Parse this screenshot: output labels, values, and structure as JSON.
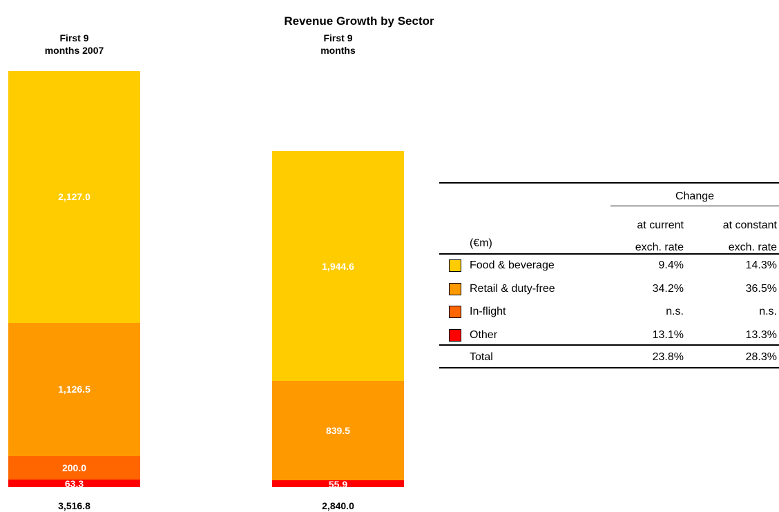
{
  "chart_data": {
    "type": "stacked-bar",
    "title": "Revenue Growth by Sector",
    "categories": [
      "First 9\nmonths 2007",
      "First 9\nmonths"
    ],
    "series": [
      {
        "name": "Food & beverage",
        "color": "#FFCC00",
        "values": [
          2127.0,
          1944.6
        ],
        "value_labels": [
          "2,127.0",
          "1,944.6"
        ]
      },
      {
        "name": "Retail & duty-free",
        "color": "#FF9900",
        "values": [
          1126.5,
          839.5
        ],
        "value_labels": [
          "1,126.5",
          "839.5"
        ]
      },
      {
        "name": "In-flight",
        "color": "#FF6600",
        "values": [
          200.0,
          null
        ],
        "value_labels": [
          "200.0",
          null
        ]
      },
      {
        "name": "Other",
        "color": "#FF0000",
        "values": [
          63.3,
          55.9
        ],
        "value_labels": [
          "63.3",
          "55.9"
        ]
      }
    ],
    "totals": [
      3516.8,
      2840.0
    ],
    "total_labels": [
      "3,516.8",
      "2,840.0"
    ]
  },
  "table": {
    "header": "Change",
    "unit": "(€m)",
    "columns": [
      "at current\nexch. rate",
      "at constant\nexch. rate"
    ],
    "rows": [
      [
        "9.4%",
        "14.3%"
      ],
      [
        "34.2%",
        "36.5%"
      ],
      [
        "n.s.",
        "n.s."
      ],
      [
        "13.1%",
        "13.3%"
      ]
    ],
    "total": [
      "Total",
      "23.8%",
      "28.3%"
    ]
  }
}
